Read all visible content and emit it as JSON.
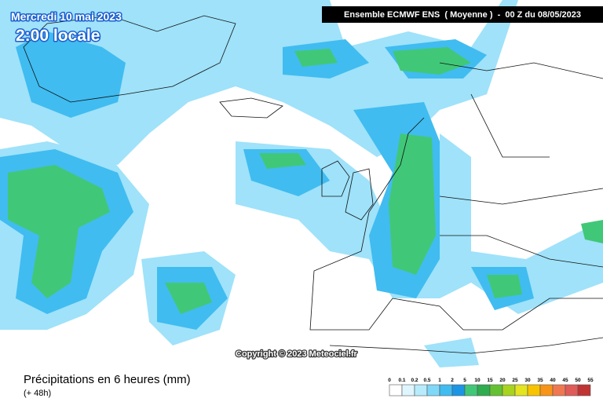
{
  "header": {
    "date": "Mercredi 10 mai 2023",
    "time": "2:00 locale",
    "model": "Ensemble ECMWF ENS  ( Moyenne )  -  00 Z du 08/05/2023"
  },
  "copyright": "Copyright © 2023 Meteociel.fr",
  "footer": {
    "title": "Précipitations en 6 heures (mm)",
    "lead": "(+ 48h)"
  },
  "legend": {
    "labels": [
      0,
      0.1,
      0.2,
      0.5,
      1,
      2,
      5,
      10,
      15,
      20,
      25,
      30,
      35,
      40,
      45,
      50,
      55
    ],
    "colors": [
      "#ffffff",
      "#dff6ff",
      "#b8ecfc",
      "#80d8f8",
      "#40bcf0",
      "#1c96e4",
      "#40c878",
      "#2eac4e",
      "#64c232",
      "#a8d420",
      "#e4e420",
      "#f8c400",
      "#f89418",
      "#f07850",
      "#e05c58",
      "#c03434"
    ]
  }
}
